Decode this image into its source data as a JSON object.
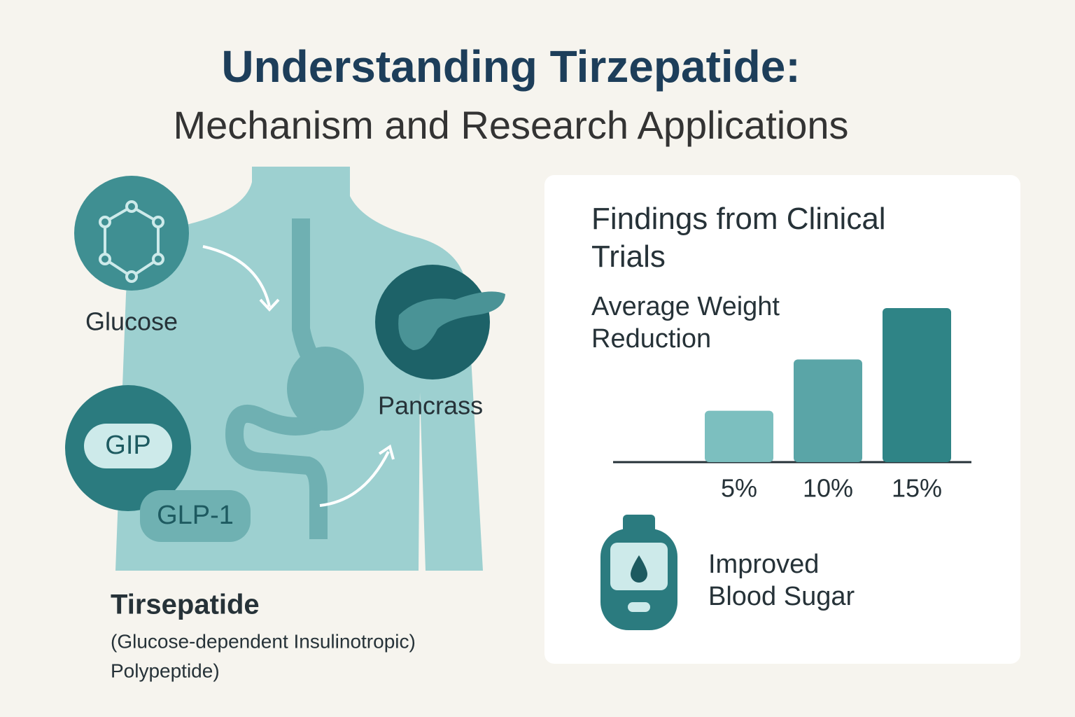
{
  "header": {
    "title": "Understanding Tirzepatide:",
    "subtitle": "Mechanism and Research Applications"
  },
  "diagram": {
    "glucose": "Glucose",
    "pancreas": "Pancrass",
    "gip": "GIP",
    "glp1": "GLP-1",
    "drug_name": "Tirsepatide",
    "drug_description_lines": [
      "(Glucose-dependent Insulinotropic)",
      "Polypeptide)"
    ]
  },
  "findings": {
    "title": "Findings from Clinical Trials",
    "callout": "Improved Blood Sugar"
  },
  "chart_data": {
    "type": "bar",
    "title": "Average Weight Reduction",
    "values": [
      5,
      10,
      15
    ],
    "value_labels": [
      "5%",
      "10%",
      "15%"
    ],
    "colors": [
      "#7cbfbf",
      "#5aa5a7",
      "#2f8486"
    ]
  }
}
